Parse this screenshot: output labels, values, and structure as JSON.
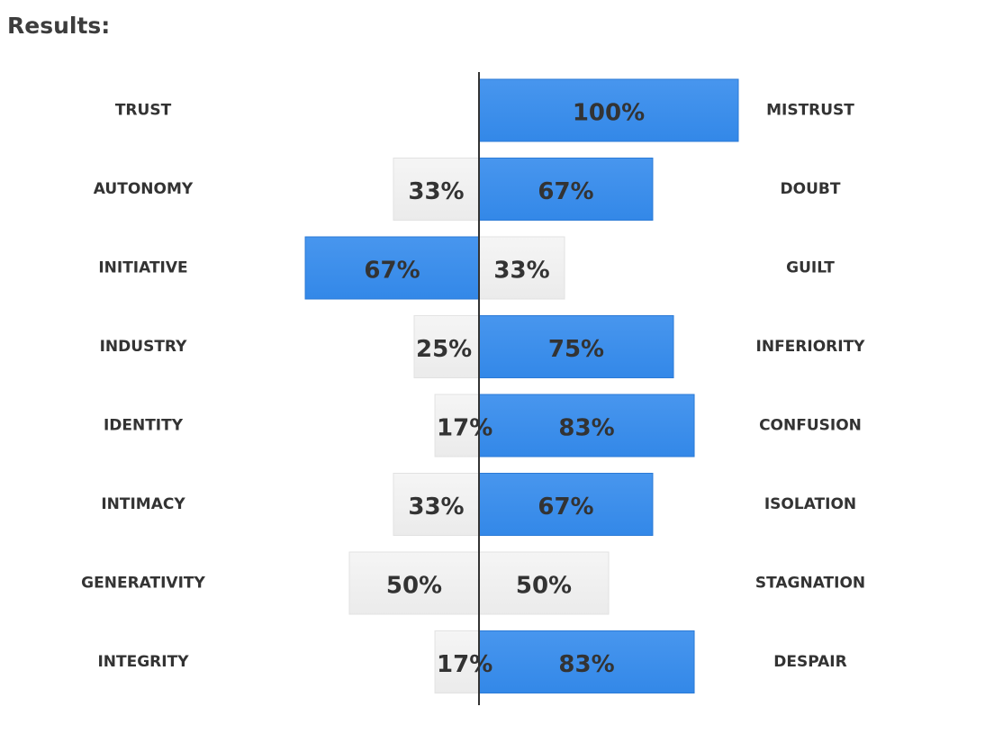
{
  "heading": "Results:",
  "colors": {
    "dominant_bar": "#3388e8",
    "dominant_bar_top": "#4896ee",
    "minor_bar": "#ebebeb",
    "minor_bar_top": "#f5f5f5",
    "axis": "#333333",
    "text": "#333333"
  },
  "chart_data": {
    "type": "bar",
    "orientation": "horizontal-diverging",
    "unit": "%",
    "categories_left": [
      "TRUST",
      "AUTONOMY",
      "INITIATIVE",
      "INDUSTRY",
      "IDENTITY",
      "INTIMACY",
      "GENERATIVITY",
      "INTEGRITY"
    ],
    "categories_right": [
      "MISTRUST",
      "DOUBT",
      "GUILT",
      "INFERIORITY",
      "CONFUSION",
      "ISOLATION",
      "STAGNATION",
      "DESPAIR"
    ],
    "series": [
      {
        "values": [
          0,
          33,
          67,
          25,
          17,
          33,
          50,
          17
        ],
        "labels": [
          "",
          "33%",
          "67%",
          "25%",
          "17%",
          "33%",
          "50%",
          "17%"
        ]
      },
      {
        "values": [
          100,
          67,
          33,
          75,
          83,
          67,
          50,
          83
        ],
        "labels": [
          "100%",
          "67%",
          "33%",
          "75%",
          "83%",
          "67%",
          "50%",
          "83%"
        ]
      }
    ],
    "xlim": [
      -100,
      100
    ],
    "grid": false
  }
}
